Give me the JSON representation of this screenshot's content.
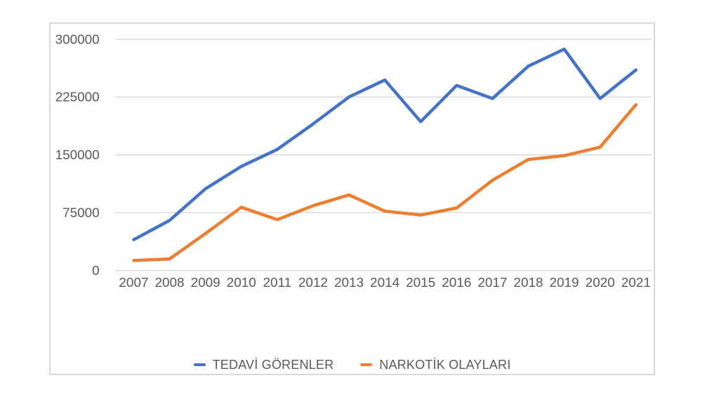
{
  "chart_data": {
    "type": "line",
    "title": "",
    "xlabel": "",
    "ylabel": "",
    "categories": [
      "2007",
      "2008",
      "2009",
      "2010",
      "2011",
      "2012",
      "2013",
      "2014",
      "2015",
      "2016",
      "2017",
      "2018",
      "2019",
      "2020",
      "2021"
    ],
    "series": [
      {
        "name": "TEDAVİ GÖRENLER",
        "color": "#4472C4",
        "values": [
          40000,
          65000,
          106000,
          135000,
          157000,
          190000,
          225000,
          247000,
          193000,
          240000,
          223000,
          265000,
          287000,
          223000,
          260000
        ]
      },
      {
        "name": "NARKOTİK OLAYLARI",
        "color": "#ED7D31",
        "values": [
          13000,
          15000,
          48000,
          82000,
          66000,
          84000,
          98000,
          77000,
          72000,
          81000,
          117000,
          144000,
          149000,
          160000,
          215000
        ]
      }
    ],
    "ylim": [
      0,
      300000
    ],
    "ytick_interval": 75000,
    "yticks": [
      "0",
      "75000",
      "150000",
      "225000",
      "300000"
    ],
    "grid": true,
    "legend_position": "bottom"
  },
  "style": {
    "grid_color": "#d9d9d9",
    "border_color": "#d9d9d9",
    "tick_label_color": "#595959",
    "background_color": "#ffffff"
  }
}
